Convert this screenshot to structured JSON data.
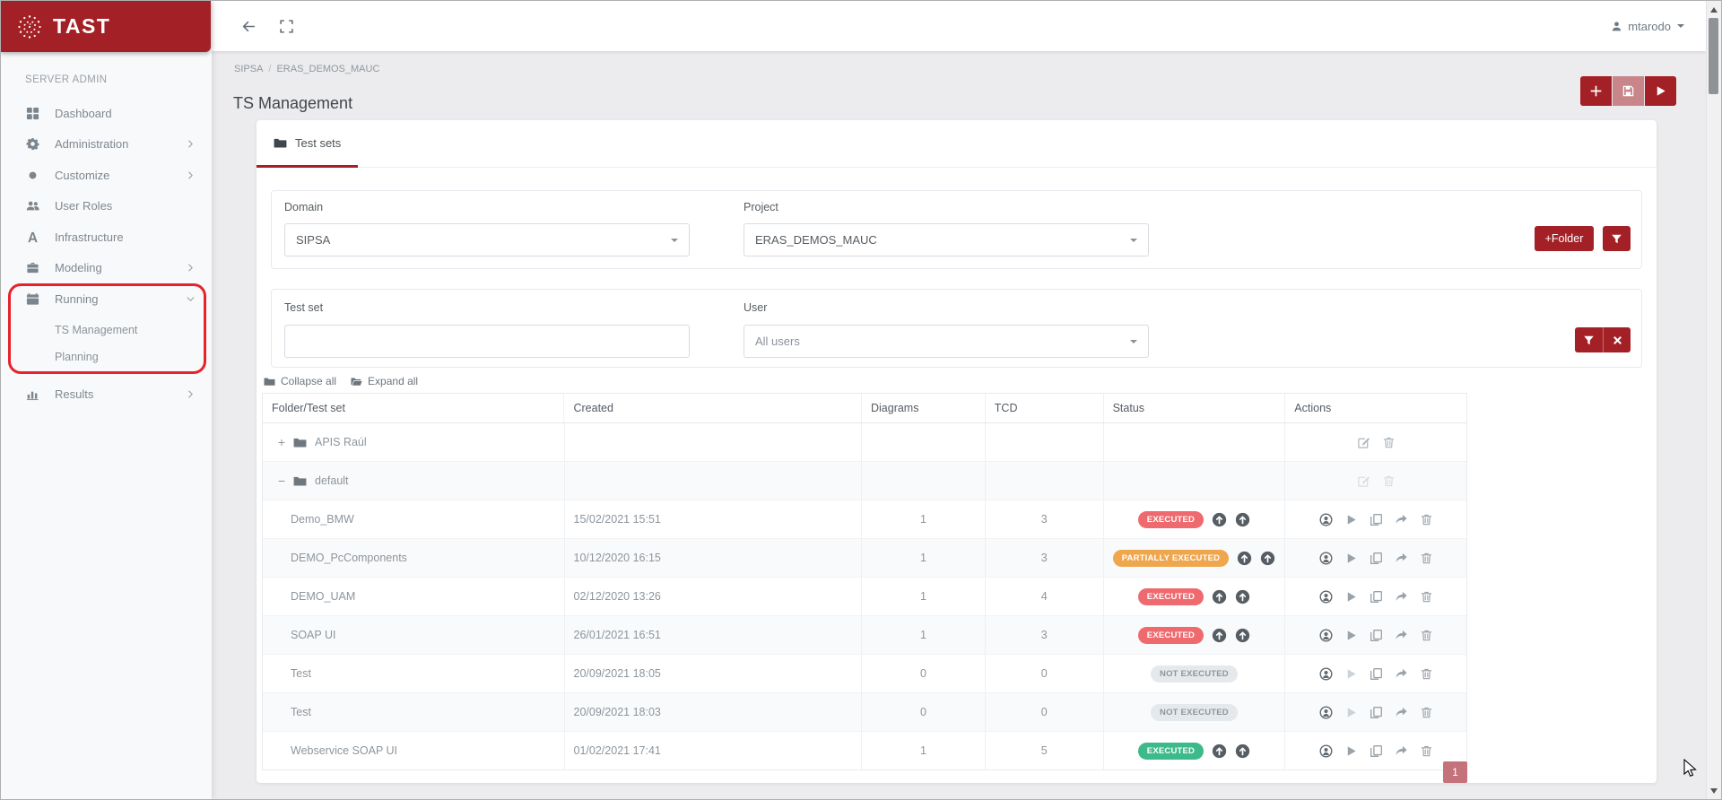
{
  "brand": {
    "name": "TAST"
  },
  "topbar": {
    "user": "mtarodo"
  },
  "sidebar": {
    "section": "SERVER ADMIN",
    "items": [
      {
        "label": "Dashboard",
        "icon": "grid"
      },
      {
        "label": "Administration",
        "icon": "gear",
        "chevron": "right"
      },
      {
        "label": "Customize",
        "icon": "circle",
        "chevron": "right"
      },
      {
        "label": "User Roles",
        "icon": "users"
      },
      {
        "label": "Infrastructure",
        "icon": "letter-a"
      },
      {
        "label": "Modeling",
        "icon": "briefcase",
        "chevron": "right"
      },
      {
        "label": "Running",
        "icon": "calendar",
        "chevron": "down",
        "expanded": true,
        "children": [
          "TS Management",
          "Planning"
        ]
      },
      {
        "label": "Results",
        "icon": "chart",
        "chevron": "right"
      }
    ]
  },
  "breadcrumb": {
    "items": [
      "SIPSA",
      "ERAS_DEMOS_MAUC"
    ],
    "separator": "/"
  },
  "page_title": "TS Management",
  "tabs": [
    {
      "label": "Test sets",
      "active": true
    }
  ],
  "filters": {
    "domain": {
      "label": "Domain",
      "value": "SIPSA"
    },
    "project": {
      "label": "Project",
      "value": "ERAS_DEMOS_MAUC"
    },
    "folder_button": "+Folder",
    "testset": {
      "label": "Test set",
      "value": ""
    },
    "user": {
      "label": "User",
      "value": "All users"
    }
  },
  "tree_controls": {
    "collapse": "Collapse all",
    "expand": "Expand all"
  },
  "table": {
    "headers": [
      "Folder/Test set",
      "Created",
      "Diagrams",
      "TCD",
      "Status",
      "Actions"
    ],
    "rows": [
      {
        "type": "folder",
        "name": "APIS Raúl",
        "expanded": false,
        "actions_muted": false
      },
      {
        "type": "folder",
        "name": "default",
        "expanded": true,
        "actions_muted": true
      },
      {
        "type": "testset",
        "name": "Demo_BMW",
        "created": "15/02/2021 15:51",
        "diagrams": "1",
        "tcd": "3",
        "status": "EXECUTED",
        "status_style": "executed-red",
        "arrows": true,
        "play_enabled": true
      },
      {
        "type": "testset",
        "name": "DEMO_PcComponents",
        "created": "10/12/2020 16:15",
        "diagrams": "1",
        "tcd": "3",
        "status": "PARTIALLY EXECUTED",
        "status_style": "partially-executed",
        "arrows": true,
        "play_enabled": true
      },
      {
        "type": "testset",
        "name": "DEMO_UAM",
        "created": "02/12/2020 13:26",
        "diagrams": "1",
        "tcd": "4",
        "status": "EXECUTED",
        "status_style": "executed-red",
        "arrows": true,
        "play_enabled": true
      },
      {
        "type": "testset",
        "name": "SOAP UI",
        "created": "26/01/2021 16:51",
        "diagrams": "1",
        "tcd": "3",
        "status": "EXECUTED",
        "status_style": "executed-red",
        "arrows": true,
        "play_enabled": true
      },
      {
        "type": "testset",
        "name": "Test",
        "created": "20/09/2021 18:05",
        "diagrams": "0",
        "tcd": "0",
        "status": "NOT EXECUTED",
        "status_style": "not-executed",
        "arrows": false,
        "play_enabled": false
      },
      {
        "type": "testset",
        "name": "Test",
        "created": "20/09/2021 18:03",
        "diagrams": "0",
        "tcd": "0",
        "status": "NOT EXECUTED",
        "status_style": "not-executed",
        "arrows": false,
        "play_enabled": false
      },
      {
        "type": "testset",
        "name": "Webservice SOAP UI",
        "created": "01/02/2021 17:41",
        "diagrams": "1",
        "tcd": "5",
        "status": "EXECUTED",
        "status_style": "executed-green",
        "arrows": true,
        "play_enabled": true
      }
    ]
  },
  "pagination": {
    "page": "1"
  },
  "colors": {
    "brand_red": "#a32126",
    "annotation_red": "#e8222a",
    "executed_red": "#ee6a6f",
    "partially_executed": "#efa64c",
    "not_executed_bg": "#e5e9ec",
    "not_executed_text": "#8d959c",
    "executed_green": "#3cba8c",
    "pagination_bg": "#c4737a"
  }
}
